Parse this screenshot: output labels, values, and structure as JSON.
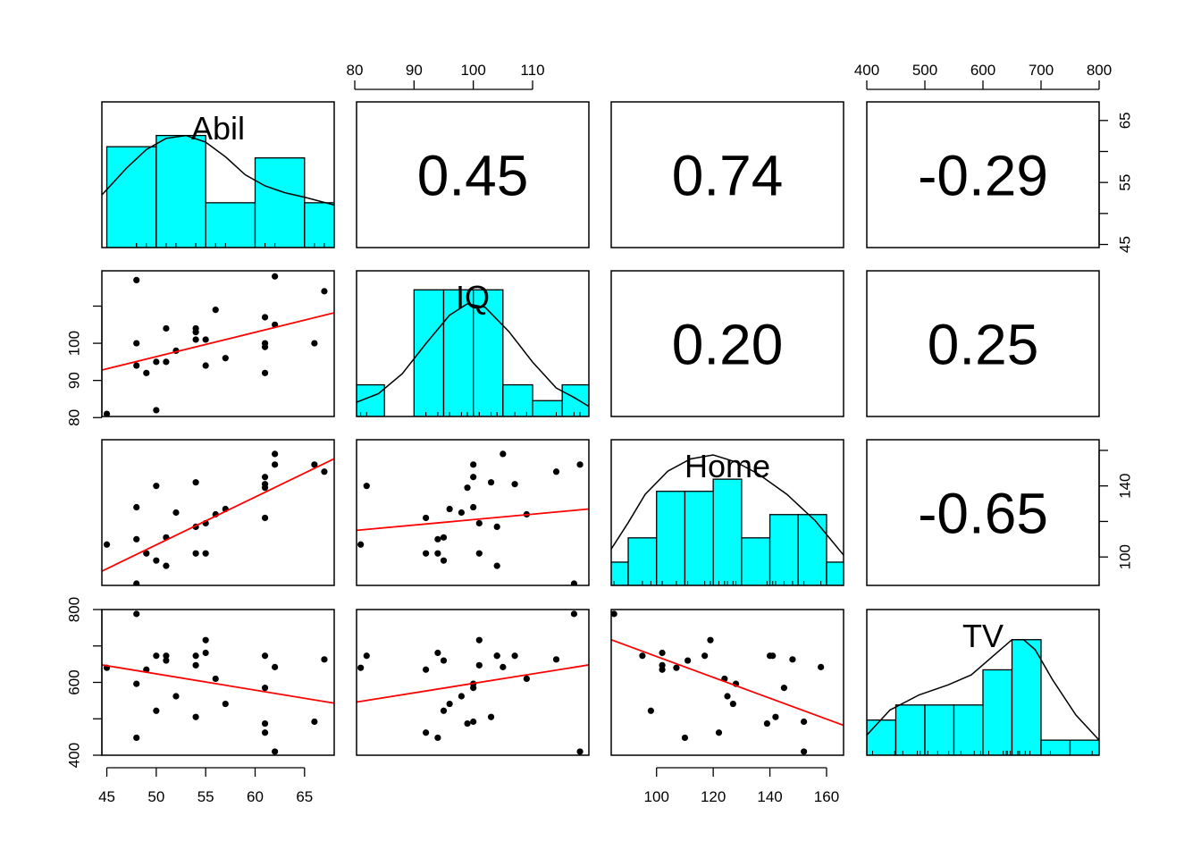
{
  "chart_data": {
    "type": "pairs",
    "variables": [
      "Abil",
      "IQ",
      "Home",
      "TV"
    ],
    "colors": {
      "hist_fill": "#00ffff",
      "fit_line": "#ff0000",
      "points": "#000000",
      "frame": "#000000"
    },
    "axes": {
      "Abil": {
        "range": [
          44.5,
          68.0
        ],
        "ticks": [
          45,
          50,
          55,
          60,
          65
        ]
      },
      "IQ": {
        "range": [
          80.3,
          119.5
        ],
        "ticks": [
          80,
          90,
          100,
          110
        ]
      },
      "Home": {
        "range": [
          84.0,
          166.0
        ],
        "ticks": [
          100,
          120,
          140,
          160
        ]
      },
      "TV": {
        "range": [
          400,
          800
        ],
        "ticks": [
          400,
          500,
          600,
          700,
          800
        ]
      }
    },
    "correlations": [
      {
        "row": "Abil",
        "col": "IQ",
        "label": "0.45"
      },
      {
        "row": "Abil",
        "col": "Home",
        "label": "0.74"
      },
      {
        "row": "Abil",
        "col": "TV",
        "label": "-0.29"
      },
      {
        "row": "IQ",
        "col": "Home",
        "label": "0.20"
      },
      {
        "row": "IQ",
        "col": "TV",
        "label": "0.25"
      },
      {
        "row": "Home",
        "col": "TV",
        "label": "-0.65"
      }
    ],
    "histograms": {
      "Abil": {
        "breaks": [
          45,
          50,
          55,
          60,
          65,
          70
        ],
        "heights": [
          0.058,
          0.06,
          0.048,
          0.056,
          0.048
        ],
        "ylim": [
          0.04,
          0.066
        ],
        "density": [
          [
            44.5,
            0.0494
          ],
          [
            47,
            0.0542
          ],
          [
            49,
            0.0575
          ],
          [
            51,
            0.0595
          ],
          [
            53,
            0.06
          ],
          [
            55,
            0.0588
          ],
          [
            57,
            0.0562
          ],
          [
            59,
            0.053
          ],
          [
            61,
            0.051
          ],
          [
            63,
            0.0498
          ],
          [
            65,
            0.049
          ],
          [
            68,
            0.0476
          ]
        ]
      },
      "IQ": {
        "breaks": [
          80,
          85,
          90,
          95,
          100,
          105,
          110,
          115,
          120
        ],
        "heights": [
          0.01,
          0.0,
          0.04,
          0.04,
          0.04,
          0.01,
          0.005,
          0.01
        ],
        "ylim": [
          0,
          0.046
        ],
        "density": [
          [
            80.3,
            0.0045
          ],
          [
            84,
            0.0072
          ],
          [
            88,
            0.0135
          ],
          [
            92,
            0.023
          ],
          [
            96,
            0.032
          ],
          [
            99,
            0.0356
          ],
          [
            102,
            0.0345
          ],
          [
            106,
            0.0268
          ],
          [
            110,
            0.0172
          ],
          [
            114,
            0.009
          ],
          [
            117,
            0.006
          ],
          [
            119.5,
            0.0032
          ]
        ]
      },
      "Home": {
        "breaks": [
          80,
          90,
          100,
          110,
          120,
          130,
          140,
          150,
          160,
          170
        ],
        "heights": [
          0.0023,
          0.0047,
          0.0093,
          0.0093,
          0.0105,
          0.0047,
          0.007,
          0.007,
          0.0023
        ],
        "ylim": [
          0,
          0.0144
        ],
        "density": [
          [
            84,
            0.0036
          ],
          [
            90,
            0.0062
          ],
          [
            96,
            0.009
          ],
          [
            104,
            0.0113
          ],
          [
            112,
            0.0125
          ],
          [
            120,
            0.0129
          ],
          [
            128,
            0.0122
          ],
          [
            136,
            0.011
          ],
          [
            146,
            0.009
          ],
          [
            156,
            0.0064
          ],
          [
            166,
            0.003
          ]
        ]
      },
      "TV": {
        "breaks": [
          350,
          400,
          450,
          500,
          550,
          600,
          650,
          700,
          750,
          800,
          850
        ],
        "heights": [
          0.0003,
          0.0007,
          0.001,
          0.001,
          0.001,
          0.0017,
          0.0023,
          0.0003,
          0.0003,
          0.0
        ],
        "ylim": [
          0,
          0.0029
        ],
        "density": [
          [
            400,
            0.0004
          ],
          [
            440,
            0.0009
          ],
          [
            490,
            0.0012
          ],
          [
            540,
            0.0014
          ],
          [
            580,
            0.0016
          ],
          [
            620,
            0.002
          ],
          [
            650,
            0.0023
          ],
          [
            670,
            0.0023
          ],
          [
            690,
            0.0021
          ],
          [
            720,
            0.0015
          ],
          [
            760,
            0.0008
          ],
          [
            800,
            0.0003
          ]
        ]
      }
    },
    "fit_lines": {
      "IQ~Abil": [
        [
          44.5,
          92.8
        ],
        [
          68.0,
          108.2
        ]
      ],
      "Home~Abil": [
        [
          44.5,
          92.0
        ],
        [
          68.0,
          155.3
        ]
      ],
      "TV~Abil": [
        [
          44.5,
          648
        ],
        [
          68.0,
          543
        ]
      ],
      "Home~IQ": [
        [
          80.3,
          115.0
        ],
        [
          119.5,
          127.0
        ]
      ],
      "TV~IQ": [
        [
          80.3,
          546
        ],
        [
          119.5,
          648
        ]
      ],
      "TV~Home": [
        [
          84.0,
          717
        ],
        [
          166.0,
          482
        ]
      ]
    },
    "points": [
      {
        "Abil": 45,
        "IQ": 81,
        "Home": 107,
        "TV": 640
      },
      {
        "Abil": 48,
        "IQ": 117,
        "Home": 85,
        "TV": 788
      },
      {
        "Abil": 48,
        "IQ": 100,
        "Home": 128,
        "TV": 596
      },
      {
        "Abil": 48,
        "IQ": 94,
        "Home": 110,
        "TV": 448
      },
      {
        "Abil": 49,
        "IQ": 92,
        "Home": 102,
        "TV": 635
      },
      {
        "Abil": 50,
        "IQ": 95,
        "Home": 98,
        "TV": 522
      },
      {
        "Abil": 50,
        "IQ": 82,
        "Home": 140,
        "TV": 673
      },
      {
        "Abil": 51,
        "IQ": 104,
        "Home": 95,
        "TV": 673
      },
      {
        "Abil": 51,
        "IQ": 95,
        "Home": 111,
        "TV": 660
      },
      {
        "Abil": 52,
        "IQ": 98,
        "Home": 125,
        "TV": 562
      },
      {
        "Abil": 54,
        "IQ": 103,
        "Home": 142,
        "TV": 505
      },
      {
        "Abil": 54,
        "IQ": 104,
        "Home": 117,
        "TV": 673
      },
      {
        "Abil": 54,
        "IQ": 101,
        "Home": 102,
        "TV": 647
      },
      {
        "Abil": 55,
        "IQ": 101,
        "Home": 119,
        "TV": 716
      },
      {
        "Abil": 55,
        "IQ": 94,
        "Home": 102,
        "TV": 681
      },
      {
        "Abil": 56,
        "IQ": 109,
        "Home": 124,
        "TV": 610
      },
      {
        "Abil": 57,
        "IQ": 96,
        "Home": 127,
        "TV": 541
      },
      {
        "Abil": 61,
        "IQ": 107,
        "Home": 141,
        "TV": 673
      },
      {
        "Abil": 61,
        "IQ": 100,
        "Home": 145,
        "TV": 585
      },
      {
        "Abil": 61,
        "IQ": 99,
        "Home": 139,
        "TV": 487
      },
      {
        "Abil": 61,
        "IQ": 92,
        "Home": 122,
        "TV": 462
      },
      {
        "Abil": 62,
        "IQ": 118,
        "Home": 152,
        "TV": 410
      },
      {
        "Abil": 62,
        "IQ": 105,
        "Home": 158,
        "TV": 642
      },
      {
        "Abil": 66,
        "IQ": 100,
        "Home": 152,
        "TV": 492
      },
      {
        "Abil": 67,
        "IQ": 114,
        "Home": 148,
        "TV": 663
      }
    ]
  }
}
